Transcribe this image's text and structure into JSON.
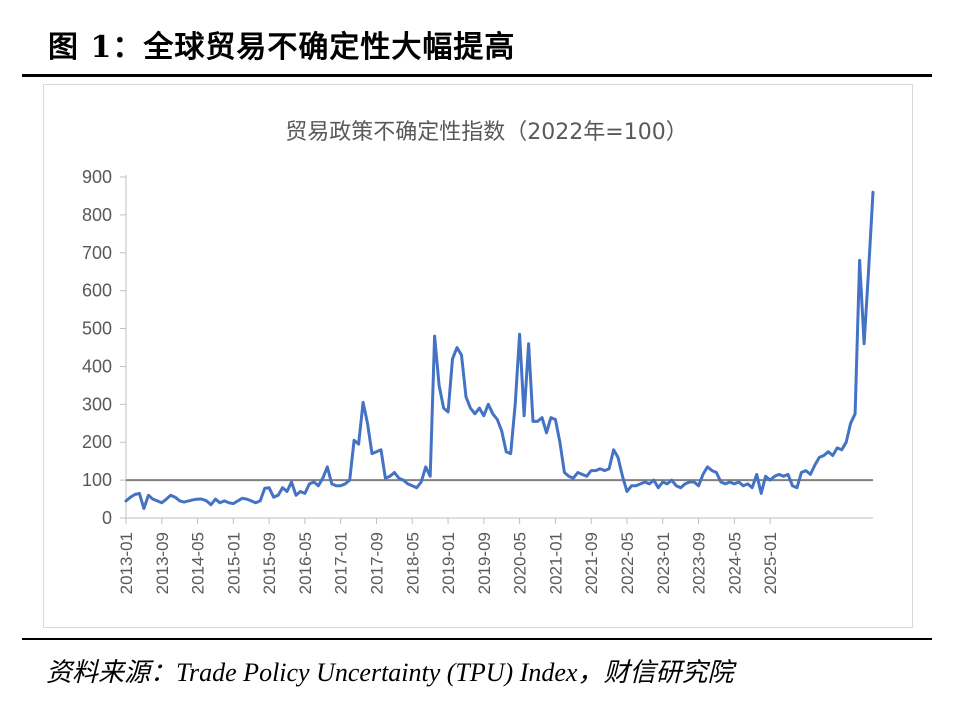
{
  "figure_title": "图 1：全球贸易不确定性大幅提高",
  "source": "资料来源：Trade Policy Uncertainty (TPU) Index，财信研究院",
  "colors": {
    "line": "#4472c4",
    "reference": "#808080",
    "axis": "#bfbfbf"
  },
  "chart_data": {
    "type": "line",
    "title": "贸易政策不确定性指数（2022年=100）",
    "xlabel": "",
    "ylabel": "",
    "ylim": [
      0,
      900
    ],
    "yticks": [
      0,
      100,
      200,
      300,
      400,
      500,
      600,
      700,
      800,
      900
    ],
    "reference_line": 100,
    "xtick_labels": [
      "2013-01",
      "2013-09",
      "2014-05",
      "2015-01",
      "2015-09",
      "2016-05",
      "2017-01",
      "2017-09",
      "2018-05",
      "2019-01",
      "2019-09",
      "2020-05",
      "2021-01",
      "2021-09",
      "2022-05",
      "2023-01",
      "2023-09",
      "2024-05",
      "2025-01"
    ],
    "start": "2013-01",
    "series": [
      {
        "name": "TPU",
        "values": [
          45,
          55,
          62,
          65,
          25,
          60,
          50,
          45,
          40,
          50,
          60,
          55,
          45,
          42,
          45,
          48,
          50,
          50,
          45,
          35,
          50,
          40,
          45,
          40,
          38,
          45,
          52,
          50,
          45,
          40,
          45,
          78,
          80,
          55,
          60,
          80,
          70,
          95,
          60,
          70,
          65,
          90,
          95,
          85,
          105,
          135,
          90,
          85,
          85,
          90,
          100,
          205,
          195,
          305,
          250,
          170,
          175,
          180,
          105,
          110,
          120,
          105,
          100,
          90,
          85,
          80,
          95,
          135,
          110,
          480,
          350,
          290,
          280,
          420,
          450,
          430,
          320,
          290,
          275,
          290,
          270,
          300,
          275,
          260,
          230,
          175,
          170,
          300,
          485,
          270,
          460,
          255,
          255,
          265,
          225,
          265,
          260,
          200,
          120,
          110,
          105,
          120,
          115,
          110,
          125,
          125,
          130,
          125,
          130,
          180,
          160,
          110,
          70,
          85,
          85,
          90,
          95,
          90,
          100,
          80,
          95,
          90,
          100,
          85,
          80,
          90,
          95,
          95,
          85,
          115,
          135,
          125,
          120,
          95,
          90,
          95,
          90,
          95,
          85,
          90,
          80,
          115,
          65,
          110,
          100,
          110,
          115,
          110,
          115,
          85,
          80,
          120,
          125,
          115,
          140,
          160,
          165,
          175,
          165,
          185,
          180,
          200,
          250,
          275,
          680,
          460,
          650,
          860
        ]
      }
    ]
  }
}
